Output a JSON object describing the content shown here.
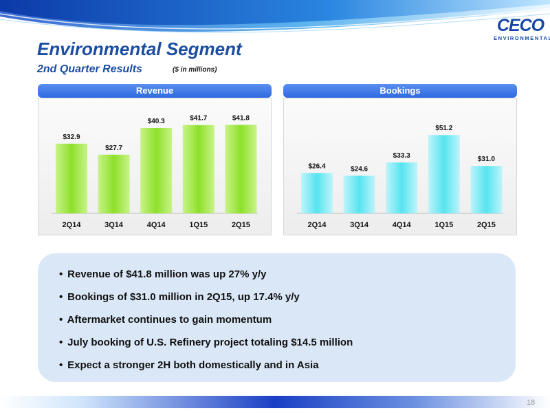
{
  "header": {
    "title": "Environmental Segment",
    "subtitle": "2nd Quarter Results",
    "units_note": "($ in millions)"
  },
  "logo": {
    "mark": "CECO",
    "sub": "ENVIRONMENTAL"
  },
  "colors": {
    "revenue_bar": "#8ee02a",
    "bookings_bar": "#56e4f0",
    "panel_header": "#3a74e6",
    "title": "#1b4da0"
  },
  "chart_data": [
    {
      "type": "bar",
      "title": "Revenue",
      "categories": [
        "2Q14",
        "3Q14",
        "4Q14",
        "1Q15",
        "2Q15"
      ],
      "values": [
        32.9,
        27.7,
        40.3,
        41.7,
        41.8
      ],
      "value_labels": [
        "$32.9",
        "$27.7",
        "$40.3",
        "$41.7",
        "$41.8"
      ],
      "xlabel": "",
      "ylabel": "",
      "ylim": [
        0,
        52
      ],
      "grid": false,
      "legend": "none"
    },
    {
      "type": "bar",
      "title": "Bookings",
      "categories": [
        "2Q14",
        "3Q14",
        "4Q14",
        "1Q15",
        "2Q15"
      ],
      "values": [
        26.4,
        24.6,
        33.3,
        51.2,
        31.0
      ],
      "value_labels": [
        "$26.4",
        "$24.6",
        "$33.3",
        "$51.2",
        "$31.0"
      ],
      "xlabel": "",
      "ylabel": "",
      "ylim": [
        0,
        72
      ],
      "grid": false,
      "legend": "none"
    }
  ],
  "bullets": [
    "Revenue of $41.8 million was up 27% y/y",
    "Bookings of $31.0 million in 2Q15, up 17.4% y/y",
    "Aftermarket continues to gain momentum",
    "July booking of U.S. Refinery project totaling $14.5 million",
    "Expect a stronger 2H both domestically and in Asia"
  ],
  "bullet_marker": "•",
  "page_number": "18"
}
